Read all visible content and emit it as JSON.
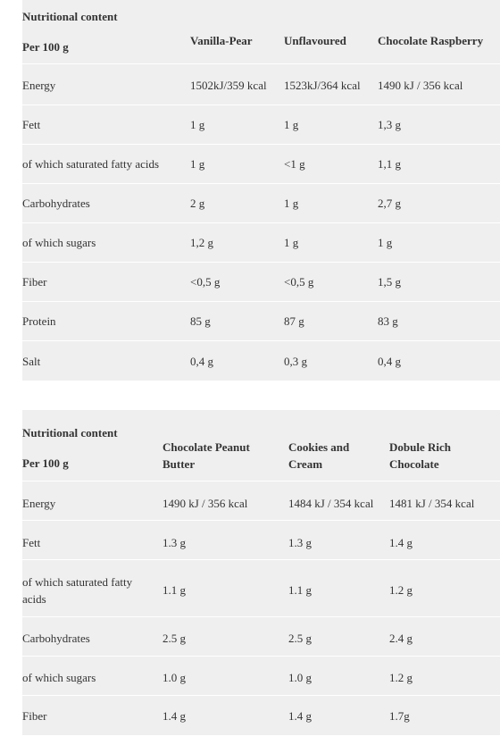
{
  "table1": {
    "title": "Nutritional content",
    "per_label": "Per 100 g",
    "columns": [
      "Vanilla-Pear",
      "Unflavoured",
      "Chocolate Raspberry"
    ],
    "rows": [
      {
        "label": "Energy",
        "values": [
          "1502kJ/359 kcal",
          "1523kJ/364 kcal",
          "1490 kJ / 356 kcal"
        ]
      },
      {
        "label": "Fett",
        "values": [
          "1 g",
          "1 g",
          "1,3 g"
        ]
      },
      {
        "label": "of which saturated fatty acids",
        "values": [
          "1 g",
          "<1 g",
          "1,1 g"
        ]
      },
      {
        "label": "Carbohydrates",
        "values": [
          "2 g",
          "1 g",
          "2,7 g"
        ]
      },
      {
        "label": "of which sugars",
        "values": [
          "1,2 g",
          "1 g",
          "1 g"
        ]
      },
      {
        "label": "Fiber",
        "values": [
          "<0,5 g",
          "<0,5 g",
          "1,5 g"
        ]
      },
      {
        "label": "Protein",
        "values": [
          "85 g",
          "87 g",
          "83 g"
        ]
      },
      {
        "label": "Salt",
        "values": [
          "0,4 g",
          "0,3 g",
          "0,4 g"
        ]
      }
    ]
  },
  "table2": {
    "title": "Nutritional content",
    "per_label": "Per 100 g",
    "columns": [
      "Chocolate Peanut Butter",
      "Cookies and Cream",
      "Dobule Rich Chocolate"
    ],
    "rows": [
      {
        "label": "Energy",
        "values": [
          "1490 kJ / 356 kcal",
          "1484 kJ / 354 kcal",
          "1481 kJ / 354 kcal"
        ]
      },
      {
        "label": "Fett",
        "values": [
          "1.3 g",
          "1.3 g",
          "1.4 g"
        ]
      },
      {
        "label": "of which saturated fatty acids",
        "values": [
          "1.1 g",
          "1.1 g",
          "1.2 g"
        ]
      },
      {
        "label": "Carbohydrates",
        "values": [
          "2.5 g",
          "2.5 g",
          "2.4 g"
        ]
      },
      {
        "label": "of which sugars",
        "values": [
          "1.0 g",
          "1.0 g",
          "1.2 g"
        ]
      },
      {
        "label": "Fiber",
        "values": [
          "1.4 g",
          "1.4 g",
          "1.7g"
        ]
      }
    ]
  }
}
